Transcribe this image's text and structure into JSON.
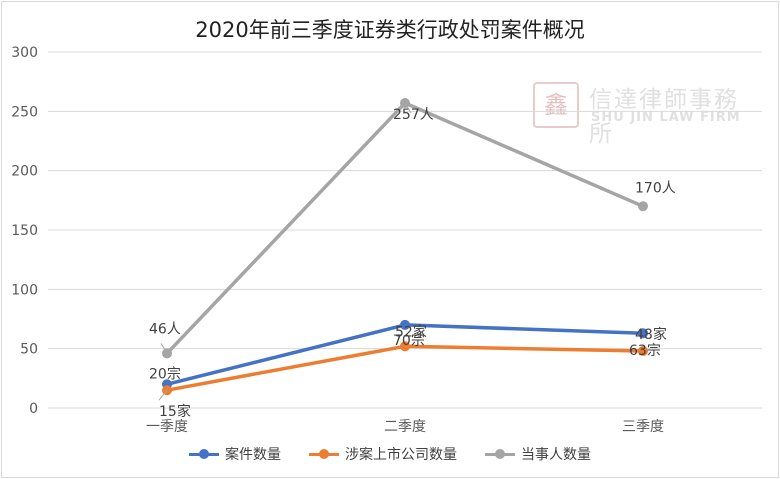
{
  "chart_data": {
    "type": "line",
    "title": "2020年前三季度证券类行政处罚案件概况",
    "categories": [
      "一季度",
      "二季度",
      "三季度"
    ],
    "ylim": [
      0,
      300
    ],
    "yticks": [
      0,
      50,
      100,
      150,
      200,
      250,
      300
    ],
    "grid": true,
    "legend_position": "bottom",
    "series": [
      {
        "name": "案件数量",
        "values": [
          20,
          70,
          63
        ],
        "labels": [
          "20宗",
          "70宗",
          "63宗"
        ],
        "color": "#4472c4"
      },
      {
        "name": "涉案上市公司数量",
        "values": [
          15,
          52,
          48
        ],
        "labels": [
          "15家",
          "52家",
          "48家"
        ],
        "color": "#ed7d31"
      },
      {
        "name": "当事人数量",
        "values": [
          46,
          257,
          170
        ],
        "labels": [
          "46人",
          "257人",
          "170人"
        ],
        "color": "#a5a5a5"
      }
    ]
  },
  "watermark": {
    "seal": "鑫",
    "name_cn": "信達律師事務所",
    "name_en": "SHU JIN LAW FIRM"
  }
}
